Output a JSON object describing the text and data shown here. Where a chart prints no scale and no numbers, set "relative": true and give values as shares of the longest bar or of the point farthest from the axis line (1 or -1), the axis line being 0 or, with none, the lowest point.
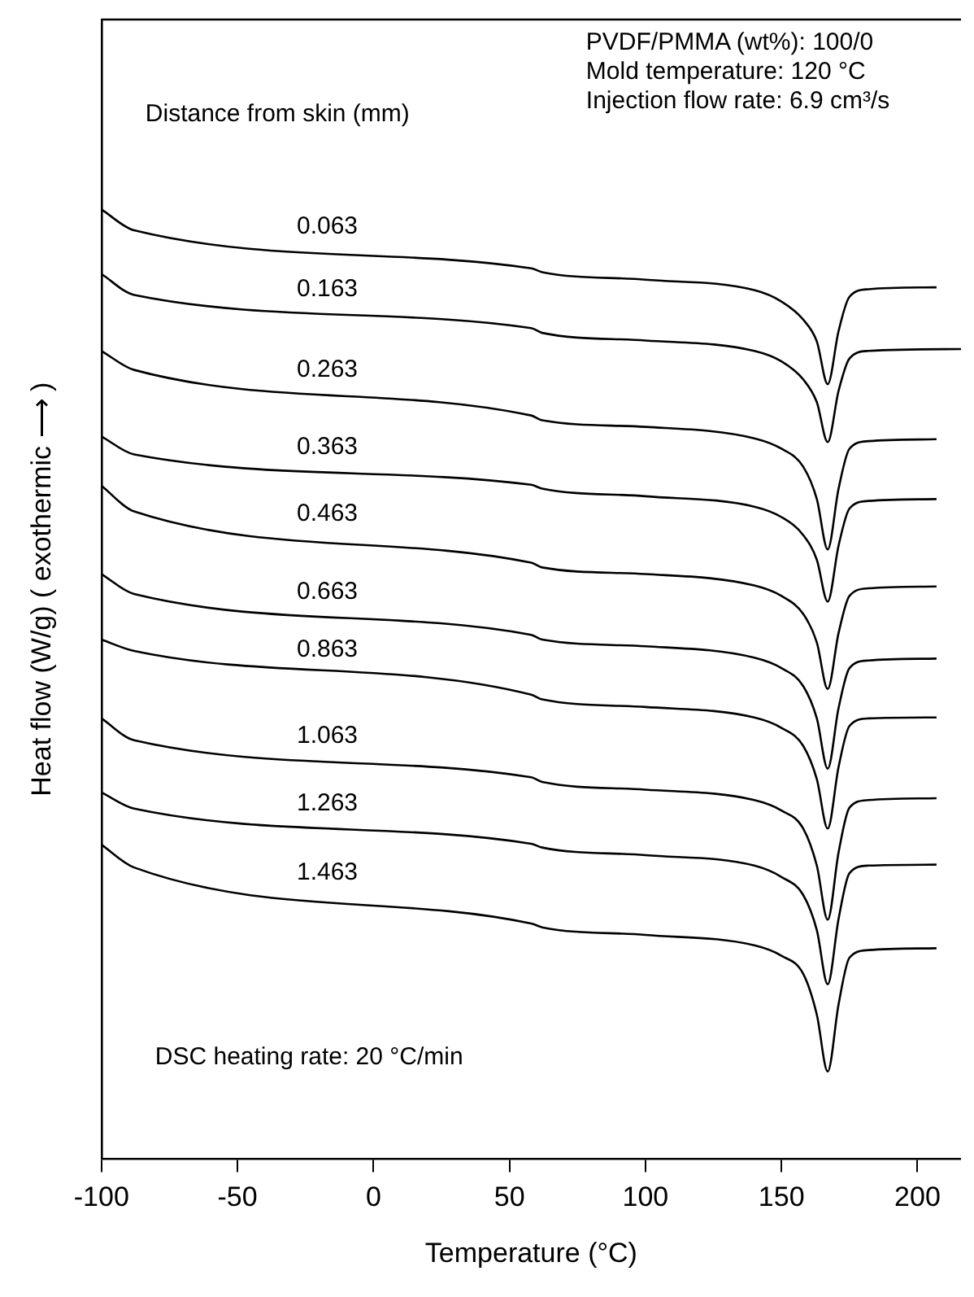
{
  "chart_data": {
    "type": "line",
    "relative": true,
    "xlabel": "Temperature (°C)",
    "ylabel": "Heat flow (W/g) ( exothermic ⟶ )",
    "legend_title": "Distance from skin (mm)",
    "legend": false,
    "marker": "none",
    "line_style": "solid",
    "xlim": [
      -100,
      216
    ],
    "xticks": [
      -100,
      -50,
      0,
      50,
      100,
      150,
      200
    ],
    "annotations": [
      "PVDF/PMMA (wt%): 100/0",
      "Mold temperature: 120 °C",
      "Injection flow rate: 6.9 cm³/s",
      "DSC heating rate: 20 °C/min"
    ],
    "x": [
      -100,
      -88,
      58,
      62,
      100,
      140,
      150,
      158,
      163,
      167,
      171,
      175,
      182,
      207
    ],
    "series": [
      {
        "name": "0.063",
        "color": "#000000",
        "values": [
          1.0,
          0.978,
          0.938,
          0.934,
          0.926,
          0.915,
          0.903,
          0.884,
          0.861,
          0.816,
          0.872,
          0.908,
          0.916,
          0.918
        ]
      },
      {
        "name": "0.163",
        "color": "#000000",
        "x": [
          -100,
          -88,
          58,
          62,
          100,
          140,
          150,
          158,
          163,
          167,
          171,
          175,
          182,
          216
        ],
        "values": [
          0.932,
          0.91,
          0.875,
          0.87,
          0.862,
          0.851,
          0.84,
          0.821,
          0.797,
          0.755,
          0.809,
          0.843,
          0.851,
          0.853
        ]
      },
      {
        "name": "0.263",
        "color": "#000000",
        "values": [
          0.851,
          0.831,
          0.783,
          0.778,
          0.771,
          0.759,
          0.748,
          0.729,
          0.695,
          0.642,
          0.706,
          0.748,
          0.756,
          0.758
        ]
      },
      {
        "name": "0.363",
        "color": "#000000",
        "values": [
          0.761,
          0.742,
          0.71,
          0.706,
          0.698,
          0.687,
          0.676,
          0.657,
          0.631,
          0.587,
          0.646,
          0.685,
          0.693,
          0.695
        ]
      },
      {
        "name": "0.463",
        "color": "#000000",
        "values": [
          0.709,
          0.682,
          0.628,
          0.623,
          0.616,
          0.604,
          0.593,
          0.574,
          0.544,
          0.495,
          0.554,
          0.593,
          0.601,
          0.603
        ]
      },
      {
        "name": "0.663",
        "color": "#000000",
        "values": [
          0.616,
          0.595,
          0.552,
          0.547,
          0.54,
          0.528,
          0.517,
          0.498,
          0.464,
          0.411,
          0.475,
          0.517,
          0.525,
          0.527
        ]
      },
      {
        "name": "0.863",
        "color": "#000000",
        "values": [
          0.547,
          0.535,
          0.489,
          0.484,
          0.476,
          0.465,
          0.454,
          0.435,
          0.4,
          0.348,
          0.413,
          0.456,
          0.464,
          0.465
        ]
      },
      {
        "name": "1.063",
        "color": "#000000",
        "values": [
          0.464,
          0.441,
          0.402,
          0.397,
          0.389,
          0.378,
          0.367,
          0.348,
          0.309,
          0.252,
          0.323,
          0.37,
          0.378,
          0.38
        ]
      },
      {
        "name": "1.263",
        "color": "#000000",
        "values": [
          0.386,
          0.369,
          0.332,
          0.328,
          0.32,
          0.309,
          0.297,
          0.278,
          0.241,
          0.184,
          0.253,
          0.301,
          0.309,
          0.31
        ]
      },
      {
        "name": "1.463",
        "color": "#000000",
        "values": [
          0.331,
          0.307,
          0.248,
          0.244,
          0.236,
          0.225,
          0.214,
          0.195,
          0.152,
          0.092,
          0.163,
          0.212,
          0.22,
          0.222
        ]
      }
    ]
  }
}
